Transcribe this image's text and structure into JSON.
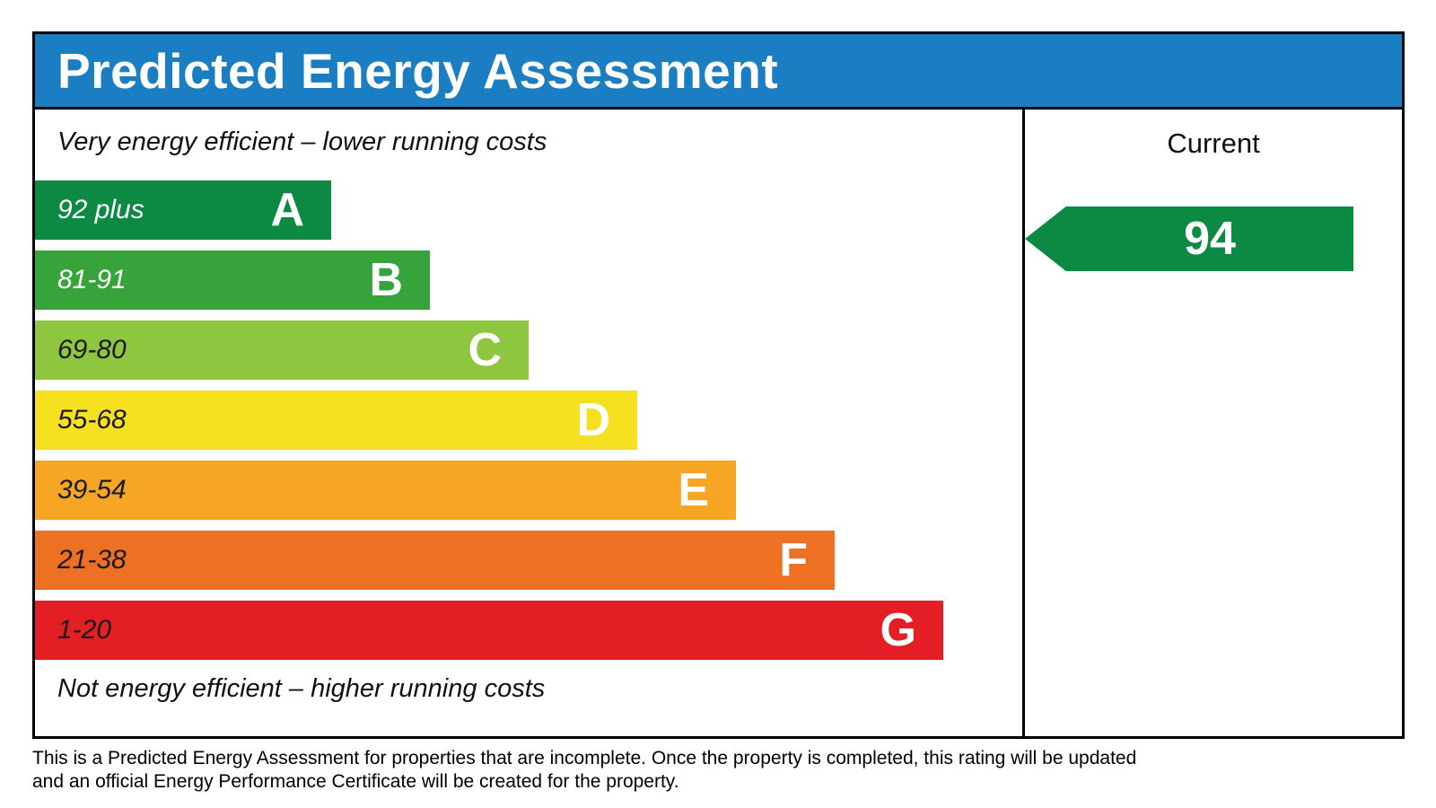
{
  "title": "Predicted Energy Assessment",
  "colors": {
    "header_bg": "#1b7ec3",
    "header_text": "#ffffff",
    "border": "#000000"
  },
  "chart_data": {
    "type": "bar",
    "orientation": "horizontal",
    "title": "Predicted Energy Assessment",
    "top_caption": "Very energy efficient – lower running costs",
    "bottom_caption": "Not energy efficient – higher running costs",
    "categories": [
      "A",
      "B",
      "C",
      "D",
      "E",
      "F",
      "G"
    ],
    "bands": [
      {
        "letter": "A",
        "range": "92 plus",
        "range_min": 92,
        "range_max": 100,
        "color": "#0c8a44",
        "range_text_color": "#ffffff",
        "width_pct": 30
      },
      {
        "letter": "B",
        "range": "81-91",
        "range_min": 81,
        "range_max": 91,
        "color": "#37a33b",
        "range_text_color": "#ffffff",
        "width_pct": 40
      },
      {
        "letter": "C",
        "range": "69-80",
        "range_min": 69,
        "range_max": 80,
        "color": "#8ec63f",
        "range_text_color": "#1a1a1a",
        "width_pct": 50
      },
      {
        "letter": "D",
        "range": "55-68",
        "range_min": 55,
        "range_max": 68,
        "color": "#f5e120",
        "range_text_color": "#1a1a1a",
        "width_pct": 61
      },
      {
        "letter": "E",
        "range": "39-54",
        "range_min": 39,
        "range_max": 54,
        "color": "#f6a623",
        "range_text_color": "#1a1a1a",
        "width_pct": 71
      },
      {
        "letter": "F",
        "range": "21-38",
        "range_min": 21,
        "range_max": 38,
        "color": "#ee7023",
        "range_text_color": "#1a1a1a",
        "width_pct": 81
      },
      {
        "letter": "G",
        "range": "1-20",
        "range_min": 1,
        "range_max": 20,
        "color": "#e41e25",
        "range_text_color": "#1a1a1a",
        "width_pct": 92
      }
    ],
    "current": {
      "label": "Current",
      "value": 94,
      "band": "A",
      "arrow_color": "#0c8a44"
    },
    "legend_position": "right column: Current rating arrow"
  },
  "footer": {
    "text": "This is a Predicted Energy Assessment for properties that are incomplete. Once the property is completed, this rating will be updated and an official Energy Performance Certificate will be created for the property."
  }
}
